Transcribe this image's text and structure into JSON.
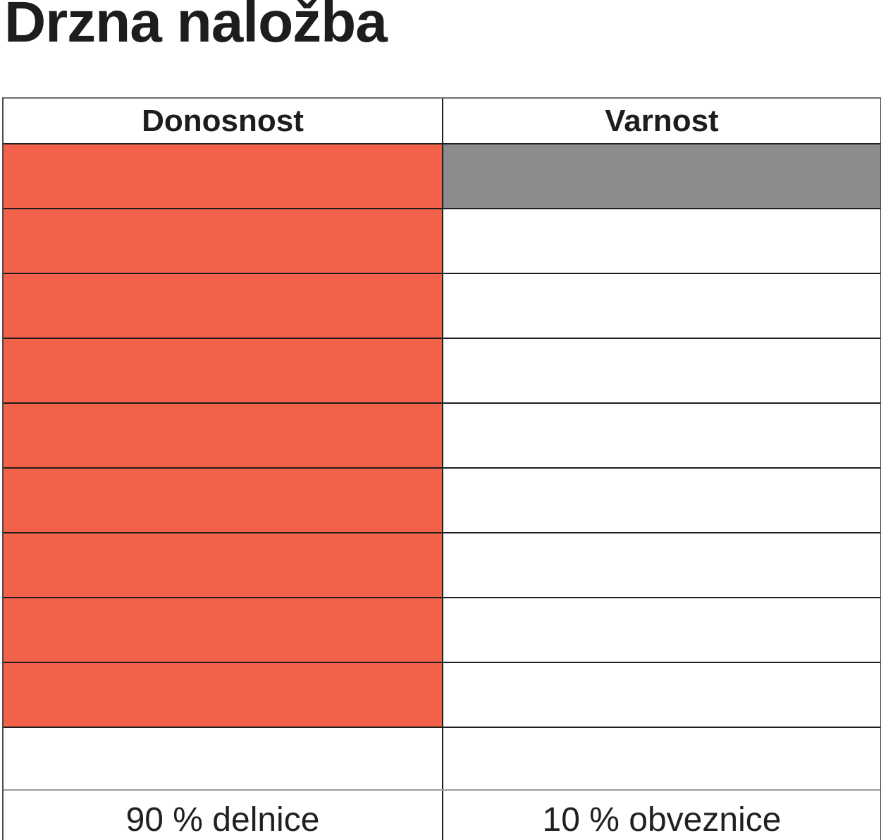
{
  "title": "Drzna naložba",
  "table": {
    "total_cells": 10,
    "columns": [
      {
        "id": "donosnost",
        "header": "Donosnost",
        "filled_cells": 9,
        "fill_color": "#F2624A",
        "footer_label": "90 % delnice"
      },
      {
        "id": "varnost",
        "header": "Varnost",
        "filled_cells": 1,
        "fill_color": "#898B8D",
        "footer_label": "10 % obveznice"
      }
    ]
  },
  "chart_data": {
    "type": "table",
    "title": "Drzna naložba",
    "categories": [
      "Donosnost",
      "Varnost"
    ],
    "series": [
      {
        "name": "filled_cells_out_of_10",
        "values": [
          9,
          1
        ]
      }
    ],
    "footer_labels": [
      "90 % delnice",
      "10 % obveznice"
    ],
    "colors": {
      "Donosnost": "#F2624A",
      "Varnost": "#898B8D"
    },
    "grid": true,
    "legend_position": "none",
    "notes": "Pictographic 10-cell waffle comparison: return (Donosnost) 9/10 cells filled orange = 90 % stocks (delnice); safety (Varnost) 1/10 cells filled gray = 10 % bonds (obveznice)."
  }
}
